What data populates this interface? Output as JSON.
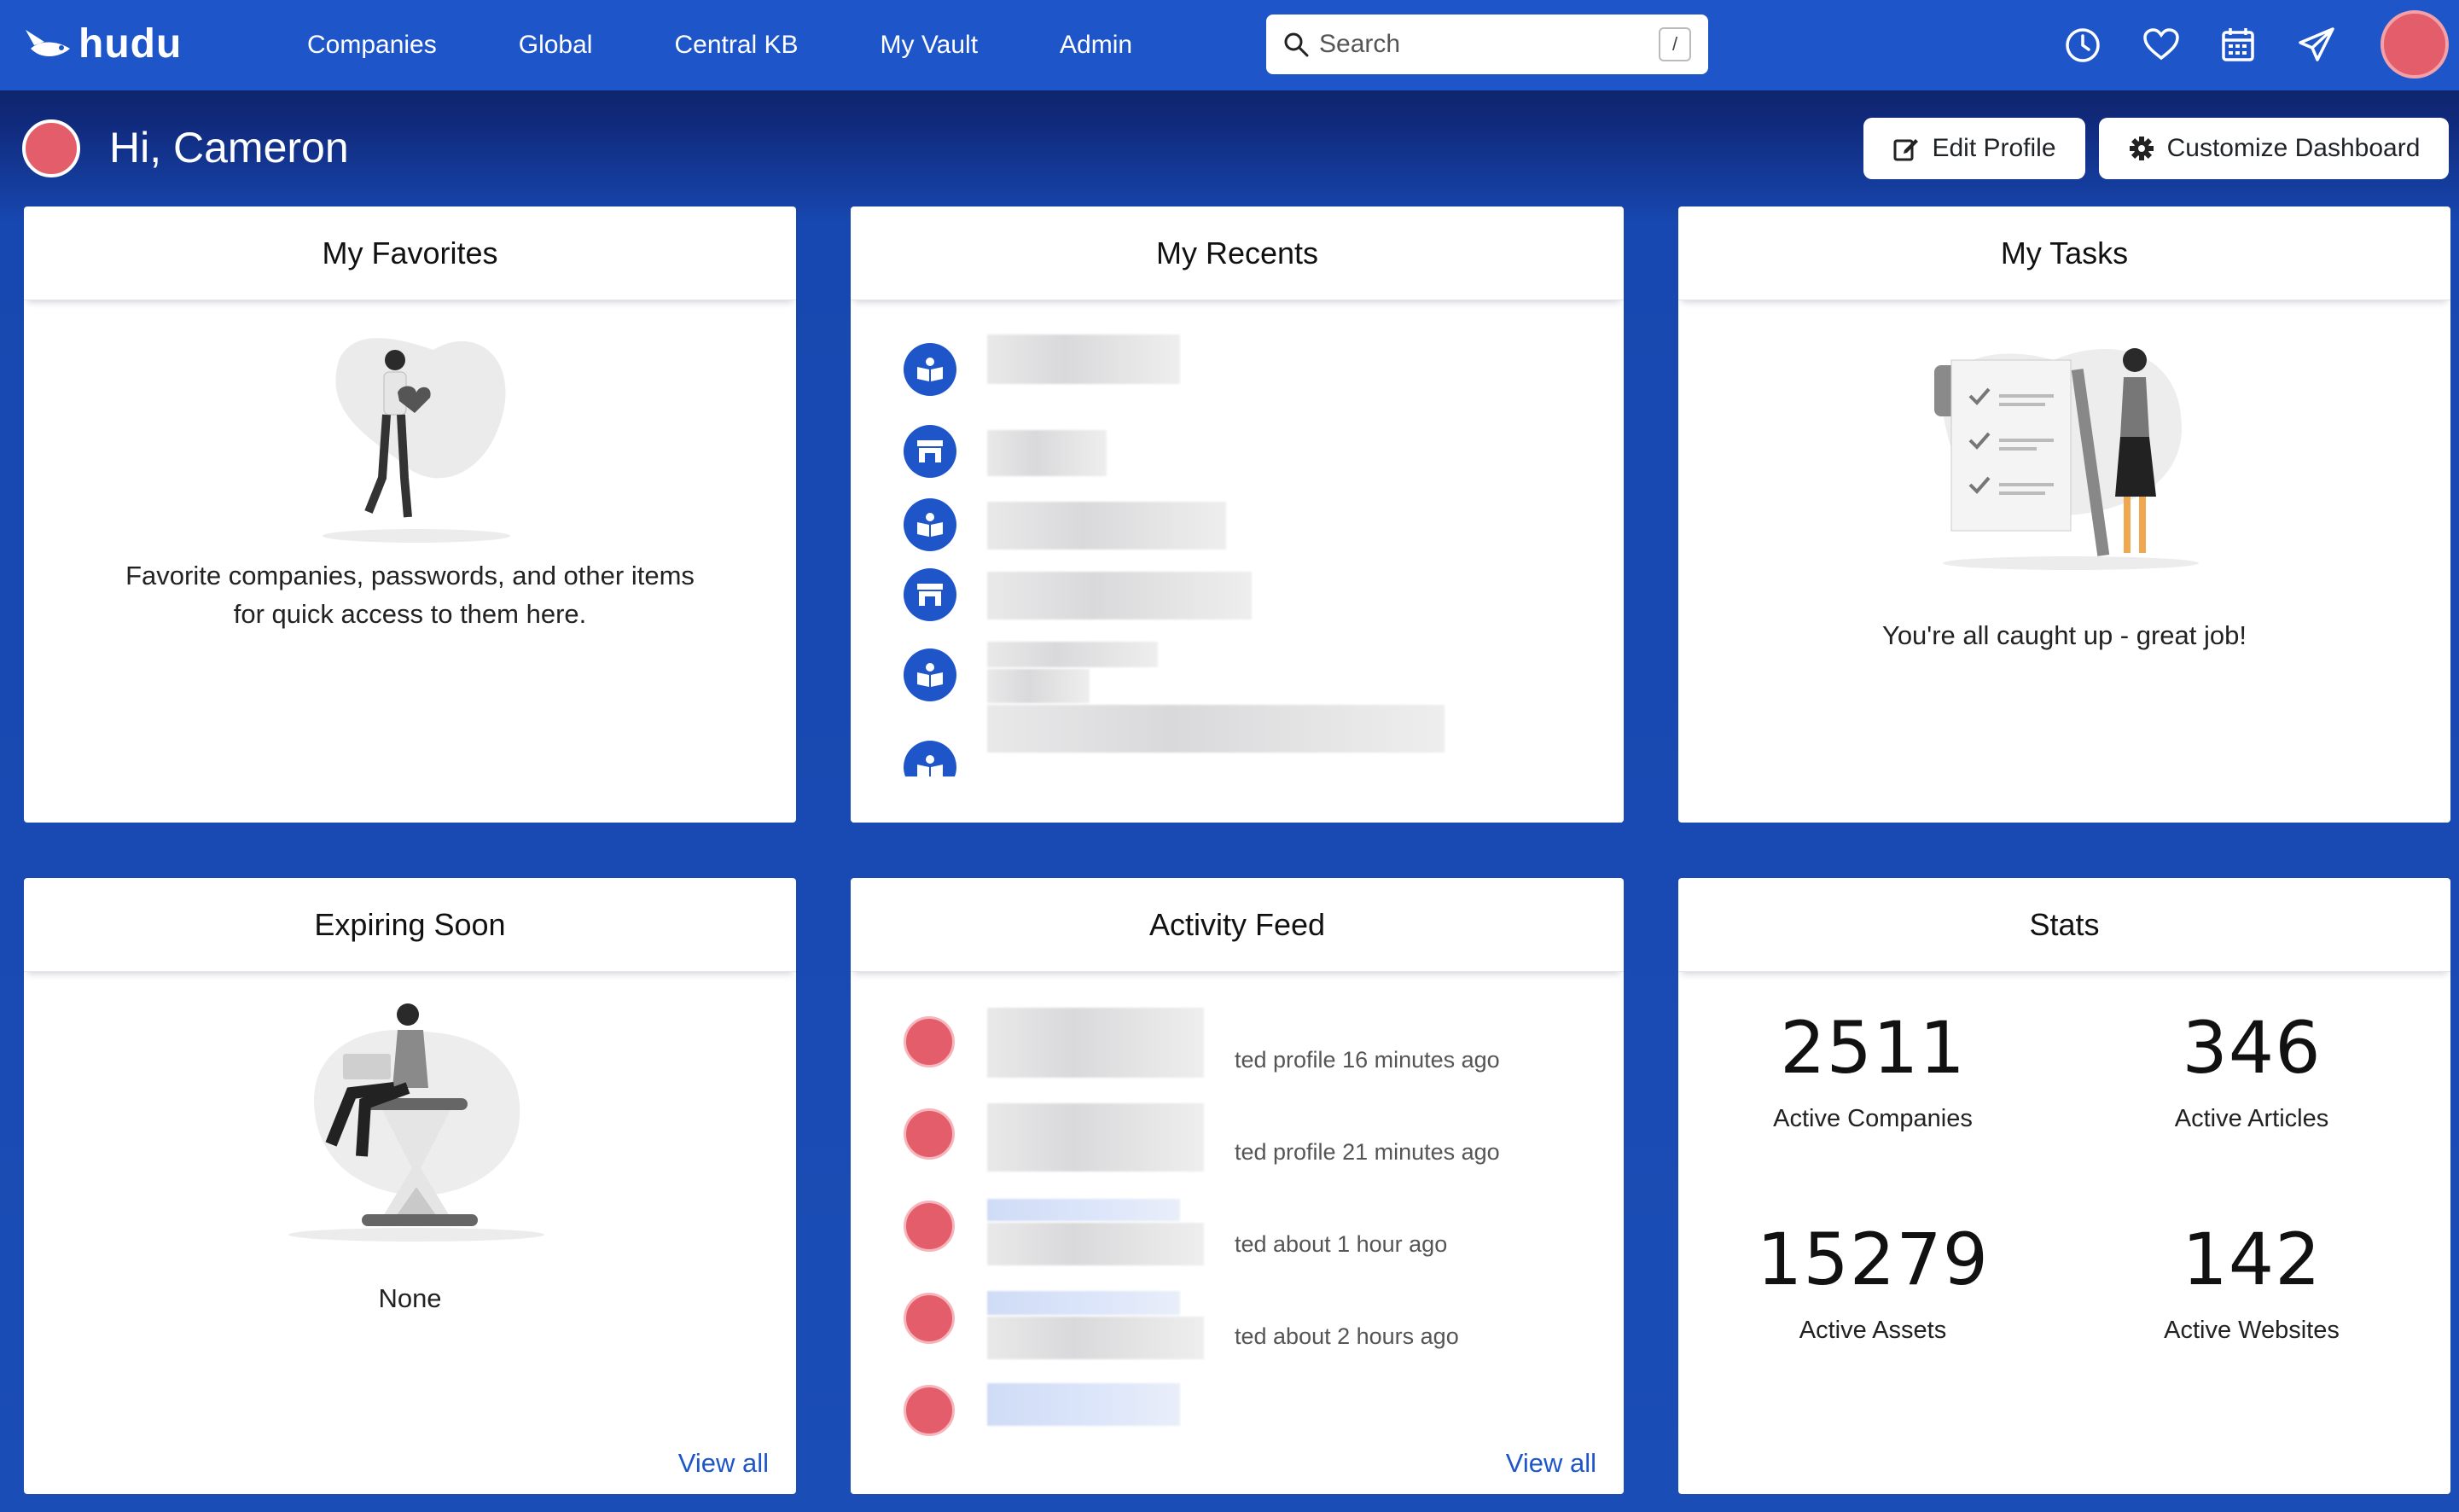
{
  "nav": {
    "logo": "hudu",
    "links": [
      "Companies",
      "Global",
      "Central KB",
      "My Vault",
      "Admin"
    ],
    "search_placeholder": "Search",
    "search_shortcut": "/"
  },
  "colors": {
    "brand": "#1e56c9",
    "avatar": "#e35d6a",
    "link": "#1e56c9"
  },
  "greeting": "Hi, Cameron",
  "buttons": {
    "edit_profile": "Edit Profile",
    "customize_dashboard": "Customize Dashboard"
  },
  "favorites": {
    "title": "My Favorites",
    "empty_line1": "Favorite companies, passwords, and other items",
    "empty_line2": "for quick access to them here."
  },
  "recents": {
    "title": "My Recents",
    "items": [
      {
        "icon": "book-icon"
      },
      {
        "icon": "store-icon"
      },
      {
        "icon": "book-icon"
      },
      {
        "icon": "store-icon"
      },
      {
        "icon": "book-icon"
      },
      {
        "icon": "book-icon"
      }
    ]
  },
  "tasks": {
    "title": "My Tasks",
    "empty": "You're all caught up - great job!"
  },
  "expiring": {
    "title": "Expiring Soon",
    "empty": "None",
    "view_all": "View all"
  },
  "activity": {
    "title": "Activity Feed",
    "view_all": "View all",
    "items": [
      {
        "text": "ted profile 16 minutes ago"
      },
      {
        "text": "ted profile 21 minutes ago"
      },
      {
        "text": "ted about 1 hour ago"
      },
      {
        "text": "ted about 2 hours ago"
      }
    ]
  },
  "stats": {
    "title": "Stats",
    "items": [
      {
        "value": "2511",
        "label": "Active Companies"
      },
      {
        "value": "346",
        "label": "Active Articles"
      },
      {
        "value": "15279",
        "label": "Active Assets"
      },
      {
        "value": "142",
        "label": "Active Websites"
      }
    ]
  }
}
